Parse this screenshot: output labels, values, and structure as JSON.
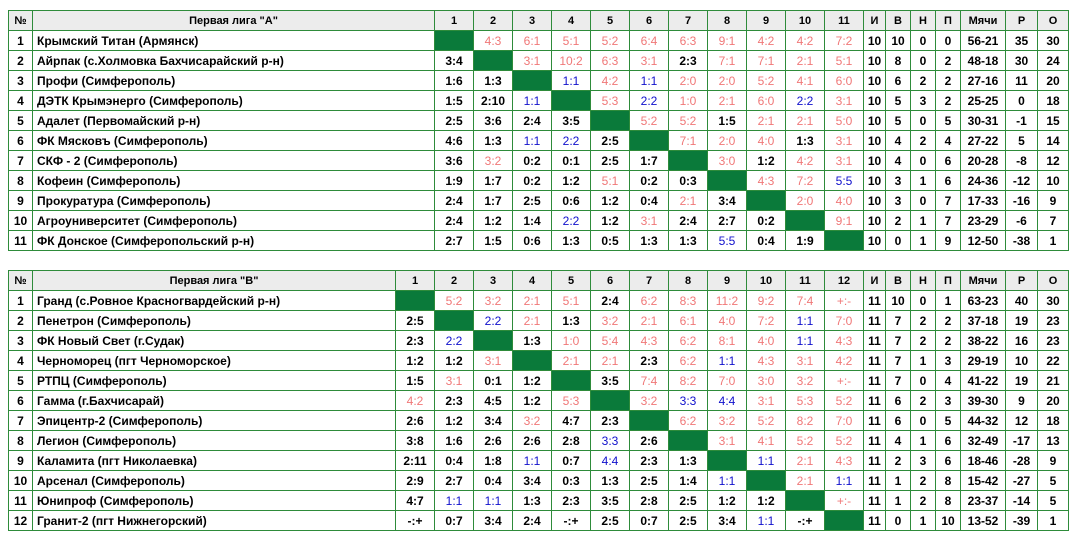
{
  "tables": [
    {
      "header": [
        "№",
        "Первая лига \"А\"",
        1,
        2,
        3,
        4,
        5,
        6,
        7,
        8,
        9,
        10,
        11,
        "И",
        "В",
        "Н",
        "П",
        "Мячи",
        "Р",
        "О"
      ],
      "rows": [
        [
          1,
          "Крымский Титан (Армянск)",
          null,
          "4:3",
          "6:1",
          "5:1",
          "5:2",
          "6:4",
          "6:3",
          "9:1",
          "4:2",
          "4:2",
          "7:2",
          10,
          10,
          0,
          0,
          "56-21",
          35,
          30
        ],
        [
          2,
          "Айрпак (с.Холмовка Бахчисарайский р-н)",
          "3:4",
          null,
          "3:1",
          "10:2",
          "6:3",
          "3:1",
          "2:3",
          "7:1",
          "7:1",
          "2:1",
          "5:1",
          10,
          8,
          0,
          2,
          "48-18",
          30,
          24
        ],
        [
          3,
          "Профи (Симферополь)",
          "1:6",
          "1:3",
          null,
          "1:1",
          "4:2",
          "1:1",
          "2:0",
          "2:0",
          "5:2",
          "4:1",
          "6:0",
          10,
          6,
          2,
          2,
          "27-16",
          11,
          20
        ],
        [
          4,
          "ДЭТК Крымэнерго (Симферополь)",
          "1:5",
          "2:10",
          "1:1",
          null,
          "5:3",
          "2:2",
          "1:0",
          "2:1",
          "6:0",
          "2:2",
          "3:1",
          10,
          5,
          3,
          2,
          "25-25",
          0,
          18
        ],
        [
          5,
          "Адалет (Первомайский р-н)",
          "2:5",
          "3:6",
          "2:4",
          "3:5",
          null,
          "5:2",
          "5:2",
          "1:5",
          "2:1",
          "2:1",
          "5:0",
          10,
          5,
          0,
          5,
          "30-31",
          -1,
          15
        ],
        [
          6,
          "ФК Мясковъ (Симферополь)",
          "4:6",
          "1:3",
          "1:1",
          "2:2",
          "2:5",
          null,
          "7:1",
          "2:0",
          "4:0",
          "1:3",
          "3:1",
          10,
          4,
          2,
          4,
          "27-22",
          5,
          14
        ],
        [
          7,
          "СКФ - 2 (Симферополь)",
          "3:6",
          "3:2",
          "0:2",
          "0:1",
          "2:5",
          "1:7",
          null,
          "3:0",
          "1:2",
          "4:2",
          "3:1",
          10,
          4,
          0,
          6,
          "20-28",
          -8,
          12
        ],
        [
          8,
          "Кофеин (Симферополь)",
          "1:9",
          "1:7",
          "0:2",
          "1:2",
          "5:1",
          "0:2",
          "0:3",
          null,
          "4:3",
          "7:2",
          "5:5",
          10,
          3,
          1,
          6,
          "24-36",
          -12,
          10
        ],
        [
          9,
          "Прокуратура (Симферополь)",
          "2:4",
          "1:7",
          "2:5",
          "0:6",
          "1:2",
          "0:4",
          "2:1",
          "3:4",
          null,
          "2:0",
          "4:0",
          10,
          3,
          0,
          7,
          "17-33",
          -16,
          9
        ],
        [
          10,
          "Агроуниверситет (Симферополь)",
          "2:4",
          "1:2",
          "1:4",
          "2:2",
          "1:2",
          "3:1",
          "2:4",
          "2:7",
          "0:2",
          null,
          "9:1",
          10,
          2,
          1,
          7,
          "23-29",
          -6,
          7
        ],
        [
          11,
          "ФК Донское (Симферопольский р-н)",
          "2:7",
          "1:5",
          "0:6",
          "1:3",
          "0:5",
          "1:3",
          "1:3",
          "5:5",
          "0:4",
          "1:9",
          null,
          10,
          0,
          1,
          9,
          "12-50",
          -38,
          1
        ]
      ]
    },
    {
      "header": [
        "№",
        "Первая лига \"В\"",
        1,
        2,
        3,
        4,
        5,
        6,
        7,
        8,
        9,
        10,
        11,
        12,
        "И",
        "В",
        "Н",
        "П",
        "Мячи",
        "Р",
        "О"
      ],
      "rows": [
        [
          1,
          "Гранд (с.Ровное Красногвардейский р-н)",
          null,
          "5:2",
          "3:2",
          "2:1",
          "5:1",
          "2:4",
          "6:2",
          "8:3",
          "11:2",
          "9:2",
          "7:4",
          "+:-",
          11,
          10,
          0,
          1,
          "63-23",
          40,
          30
        ],
        [
          2,
          "Пенетрон (Симферополь)",
          "2:5",
          null,
          "2:2",
          "2:1",
          "1:3",
          "3:2",
          "2:1",
          "6:1",
          "4:0",
          "7:2",
          "1:1",
          "7:0",
          11,
          7,
          2,
          2,
          "37-18",
          19,
          23
        ],
        [
          3,
          "ФК Новый Свет (г.Судак)",
          "2:3",
          "2:2",
          null,
          "1:3",
          "1:0",
          "5:4",
          "4:3",
          "6:2",
          "8:1",
          "4:0",
          "1:1",
          "4:3",
          11,
          7,
          2,
          2,
          "38-22",
          16,
          23
        ],
        [
          4,
          "Черноморец (пгт Черноморское)",
          "1:2",
          "1:2",
          "3:1",
          null,
          "2:1",
          "2:1",
          "2:3",
          "6:2",
          "1:1",
          "4:3",
          "3:1",
          "4:2",
          11,
          7,
          1,
          3,
          "29-19",
          10,
          22
        ],
        [
          5,
          "РТПЦ (Симферополь)",
          "1:5",
          "3:1",
          "0:1",
          "1:2",
          null,
          "3:5",
          "7:4",
          "8:2",
          "7:0",
          "3:0",
          "3:2",
          "+:-",
          11,
          7,
          0,
          4,
          "41-22",
          19,
          21
        ],
        [
          6,
          "Гамма (г.Бахчисарай)",
          "4:2",
          "2:3",
          "4:5",
          "1:2",
          "5:3",
          null,
          "3:2",
          "3:3",
          "4:4",
          "3:1",
          "5:3",
          "5:2",
          11,
          6,
          2,
          3,
          "39-30",
          9,
          20
        ],
        [
          7,
          "Эпицентр-2 (Симферополь)",
          "2:6",
          "1:2",
          "3:4",
          "3:2",
          "4:7",
          "2:3",
          null,
          "6:2",
          "3:2",
          "5:2",
          "8:2",
          "7:0",
          11,
          6,
          0,
          5,
          "44-32",
          12,
          18
        ],
        [
          8,
          "Легион (Симферополь)",
          "3:8",
          "1:6",
          "2:6",
          "2:6",
          "2:8",
          "3:3",
          "2:6",
          null,
          "3:1",
          "4:1",
          "5:2",
          "5:2",
          11,
          4,
          1,
          6,
          "32-49",
          -17,
          13
        ],
        [
          9,
          "Каламита (пгт Николаевка)",
          "2:11",
          "0:4",
          "1:8",
          "1:1",
          "0:7",
          "4:4",
          "2:3",
          "1:3",
          null,
          "1:1",
          "2:1",
          "4:3",
          11,
          2,
          3,
          6,
          "18-46",
          -28,
          9
        ],
        [
          10,
          "Арсенал (Симферополь)",
          "2:9",
          "2:7",
          "0:4",
          "3:4",
          "0:3",
          "1:3",
          "2:5",
          "1:4",
          "1:1",
          null,
          "2:1",
          "1:1",
          11,
          1,
          2,
          8,
          "15-42",
          -27,
          5
        ],
        [
          11,
          "Юнипроф (Симферополь)",
          "4:7",
          "1:1",
          "1:1",
          "1:3",
          "2:3",
          "3:5",
          "2:8",
          "2:5",
          "1:2",
          "1:2",
          null,
          "+:-",
          11,
          1,
          2,
          8,
          "23-37",
          -14,
          5
        ],
        [
          12,
          "Гранит-2 (пгт Нижнегорский)",
          "-:+",
          "0:7",
          "3:4",
          "2:4",
          "-:+",
          "2:5",
          "0:7",
          "2:5",
          "3:4",
          "1:1",
          "-:+",
          null,
          11,
          0,
          1,
          10,
          "13-52",
          -39,
          1
        ]
      ]
    }
  ]
}
